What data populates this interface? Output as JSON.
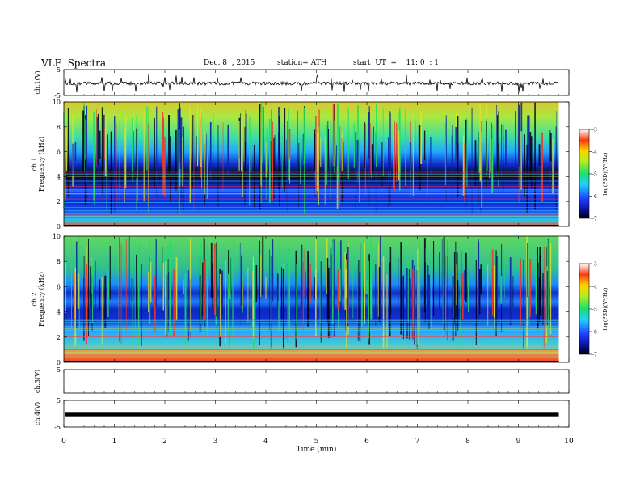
{
  "header": {
    "title": "VLF  Spectra",
    "date": "Dec. 8  , 2015",
    "station": "station= ATH",
    "start": "start  UT  =    11: 0  : 1"
  },
  "chart_data": [
    {
      "type": "line",
      "title": "",
      "ylabel": "ch.1(V)",
      "ylim": [
        -5,
        5
      ],
      "yticks": [
        "5",
        "-5"
      ],
      "description_level": -0.3
    },
    {
      "type": "heatmap",
      "ylabel": "ch.1\nFrequency  (kHz)",
      "ylim": [
        0,
        10
      ],
      "yticks": [
        "0",
        "2",
        "4",
        "6",
        "8",
        "10"
      ],
      "colorbar": {
        "label": "log(PSD)(V²/Hz)",
        "range": [
          -7,
          -3
        ],
        "ticks": [
          "-3",
          "-4",
          "-5",
          "-6",
          "-7"
        ]
      }
    },
    {
      "type": "heatmap",
      "ylabel": "ch.2\nFrequency  (kHz)",
      "ylim": [
        0,
        10
      ],
      "yticks": [
        "0",
        "2",
        "4",
        "6",
        "8",
        "10"
      ],
      "colorbar": {
        "label": "log(PSD)(V²/Hz)",
        "range": [
          -7,
          -3
        ],
        "ticks": [
          "-3",
          "-4",
          "-5",
          "-6",
          "-7"
        ]
      }
    },
    {
      "type": "line",
      "ylabel": "ch.3(V)",
      "ylim": [
        -5,
        5
      ],
      "yticks": [
        "5"
      ]
    },
    {
      "type": "line",
      "ylabel": "ch.4(V)",
      "ylim": [
        -5,
        5
      ],
      "yticks": [
        "5",
        "-5"
      ],
      "level": -0.3
    }
  ],
  "xaxis": {
    "label": "Time  (min)",
    "range": [
      0,
      10
    ],
    "ticks": [
      "0",
      "1",
      "2",
      "3",
      "4",
      "5",
      "6",
      "7",
      "8",
      "9",
      "10"
    ],
    "data_end": 9.8
  }
}
